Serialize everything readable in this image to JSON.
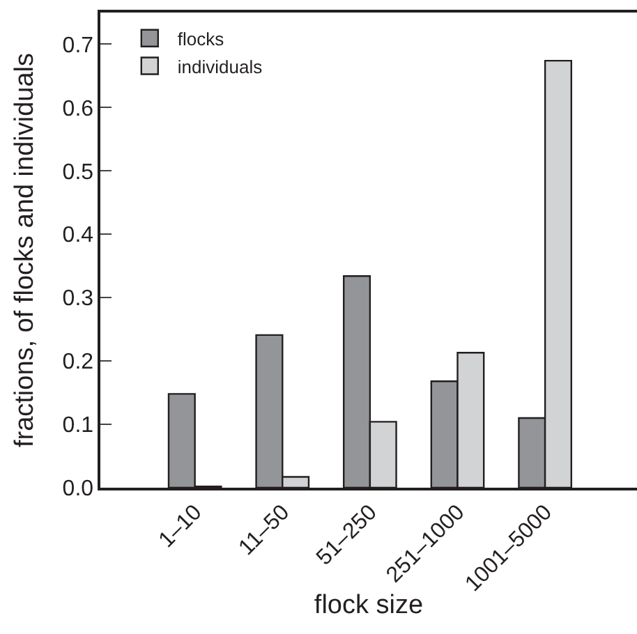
{
  "chart_data": {
    "type": "bar",
    "xlabel": "flock size",
    "ylabel": "fractions, of flocks and individuals",
    "categories": [
      "1–10",
      "11–50",
      "51–250",
      "251–1000",
      "1001–5000"
    ],
    "series": [
      {
        "name": "flocks",
        "color": "#939598",
        "values": [
          0.148,
          0.241,
          0.334,
          0.168,
          0.11
        ]
      },
      {
        "name": "individuals",
        "color": "#d1d3d4",
        "values": [
          0.002,
          0.017,
          0.104,
          0.213,
          0.674
        ]
      }
    ],
    "ylim": [
      0,
      0.75
    ],
    "yticks": [
      {
        "value": 0,
        "label": "0.0"
      },
      0.1,
      0.2,
      0.3,
      0.4,
      0.5,
      0.6,
      0.7
    ],
    "grid": false,
    "legend": "top left"
  }
}
